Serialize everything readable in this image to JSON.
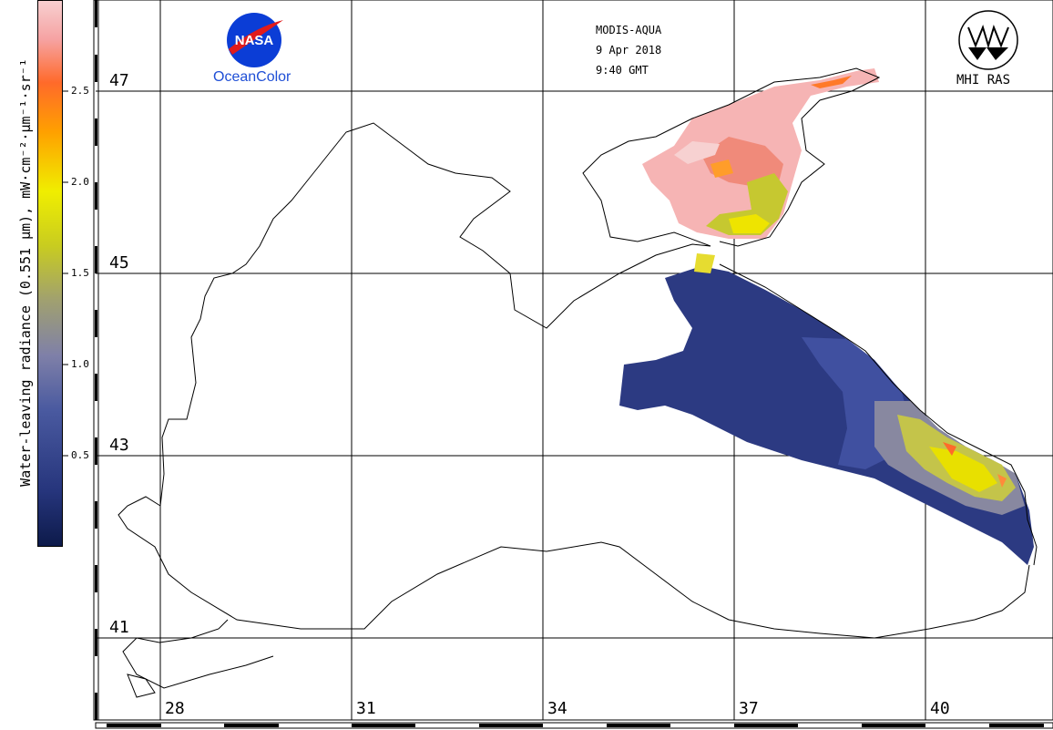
{
  "header": {
    "sensor": "MODIS-AQUA",
    "date": "9 Apr 2018",
    "time": "9:40 GMT"
  },
  "logos": {
    "nasa_word": "NASA",
    "nasa_caption": "OceanColor",
    "mhi_caption": "MHI RAS"
  },
  "colorbar": {
    "label": "Water-leaving radiance (0.551 µm), mW·cm⁻²·µm⁻¹·sr⁻¹",
    "ticks": [
      "2.5",
      "2.0",
      "1.5",
      "1.0",
      "0.5"
    ],
    "colors": [
      "#0d1a4a",
      "#4a5aa0",
      "#a0a070",
      "#f0ee00",
      "#ff6a2a",
      "#f7cfd0"
    ]
  },
  "grid": {
    "latitudes": [
      "47",
      "45",
      "43",
      "41"
    ],
    "longitudes": [
      "28",
      "31",
      "34",
      "37",
      "40"
    ]
  }
}
